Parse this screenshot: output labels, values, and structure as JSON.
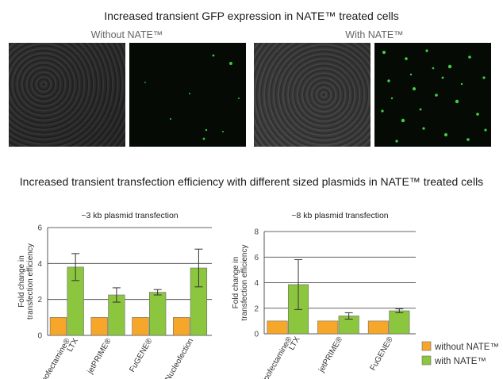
{
  "top_title": "Increased transient GFP expression in NATE™ treated cells",
  "panel_left_label": "Without NATE™",
  "panel_right_label": "With NATE™",
  "bottom_title": "Increased transient transfection efficiency with different sized plasmids in NATE™ treated cells",
  "colors": {
    "without": "#f6a628",
    "with": "#8cc63f",
    "bar_stroke": "#6b6b6b",
    "grid": "#333333"
  },
  "chart_data": [
    {
      "type": "bar",
      "title": "~3 kb plasmid transfection",
      "ylabel": "Fold change in transfection efficiency",
      "xlabel": "",
      "ylim": [
        0,
        6
      ],
      "yticks": [
        0,
        2,
        4,
        6
      ],
      "grid": true,
      "categories": [
        "Lipofectamine® LTX",
        "jetPRIME®",
        "FuGENE®",
        "Nucleofection"
      ],
      "category_lines": [
        [
          "Lipofectamine®",
          "LTX"
        ],
        [
          "jetPRIME®"
        ],
        [
          "FuGENE®"
        ],
        [
          "Nucleofection"
        ]
      ],
      "series": [
        {
          "name": "without NATE™",
          "values": [
            1,
            1,
            1,
            1
          ]
        },
        {
          "name": "with NATE™",
          "values": [
            3.8,
            2.25,
            2.4,
            3.75
          ],
          "error": [
            0.75,
            0.4,
            0.15,
            1.05
          ]
        }
      ]
    },
    {
      "type": "bar",
      "title": "~8 kb plasmid transfection",
      "ylabel": "Fold change in transfection efficiency",
      "xlabel": "",
      "ylim": [
        0,
        8
      ],
      "yticks": [
        0,
        2,
        4,
        6,
        8
      ],
      "grid": true,
      "legend": "bottom-right",
      "categories": [
        "Lipofectamine® LTX",
        "jetPRIME®",
        "FuGENE®"
      ],
      "category_lines": [
        [
          "Lipofectamine®",
          "LTX"
        ],
        [
          "jetPRIME®"
        ],
        [
          "FuGENE®"
        ]
      ],
      "series": [
        {
          "name": "without NATE™",
          "values": [
            1,
            1,
            1
          ]
        },
        {
          "name": "with NATE™",
          "values": [
            3.85,
            1.4,
            1.8
          ],
          "error": [
            1.95,
            0.25,
            0.15
          ]
        }
      ]
    }
  ]
}
